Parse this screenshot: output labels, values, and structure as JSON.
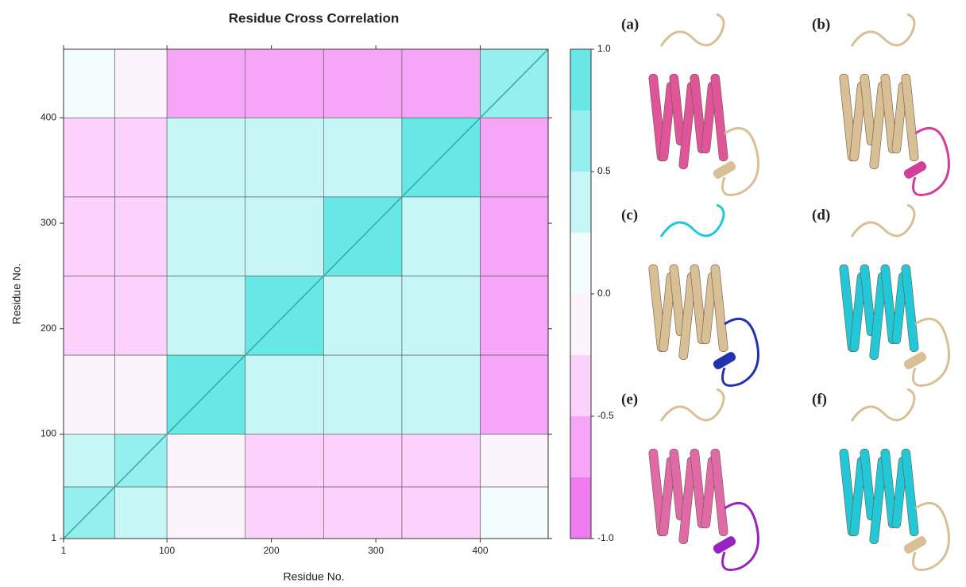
{
  "chart_data": {
    "type": "heatmap",
    "title": "Residue Cross Correlation",
    "x_label": "Residue No.",
    "y_label": "Residue No.",
    "x_bins": [
      1,
      50,
      100,
      175,
      250,
      325,
      400,
      465
    ],
    "y_bins": [
      1,
      50,
      100,
      175,
      250,
      325,
      400,
      465
    ],
    "values": [
      [
        0.7,
        0.3,
        -0.2,
        -0.3,
        -0.3,
        -0.3,
        0.1
      ],
      [
        0.3,
        0.7,
        -0.1,
        -0.4,
        -0.4,
        -0.4,
        0.0
      ],
      [
        -0.2,
        -0.1,
        0.8,
        0.5,
        0.3,
        0.3,
        -0.5
      ],
      [
        -0.3,
        -0.4,
        0.5,
        0.8,
        0.5,
        0.3,
        -0.5
      ],
      [
        -0.3,
        -0.4,
        0.3,
        0.5,
        0.8,
        0.5,
        -0.5
      ],
      [
        -0.3,
        -0.4,
        0.3,
        0.3,
        0.5,
        0.8,
        -0.5
      ],
      [
        0.1,
        0.0,
        -0.5,
        -0.5,
        -0.5,
        -0.5,
        0.7
      ]
    ],
    "xlim": [
      1,
      465
    ],
    "ylim": [
      1,
      465
    ],
    "xticks": [
      1,
      100,
      200,
      300,
      400
    ],
    "yticks": [
      1,
      100,
      200,
      300,
      400
    ],
    "color_levels": [
      -1,
      -0.75,
      -0.5,
      -0.25,
      0,
      0.25,
      0.5,
      0.75,
      1
    ],
    "colors": [
      "#f07af0",
      "#f7a6f7",
      "#fcd2fc",
      "#fdf3fd",
      "#f4fdfd",
      "#c6f6f6",
      "#95efef",
      "#68e7e7"
    ],
    "colorbar_ticks": [
      {
        "value": -1,
        "label": "-1.0"
      },
      -0.5,
      {
        "value": 0,
        "label": "0.0"
      },
      0.5,
      {
        "value": 1,
        "label": "1.0"
      }
    ]
  },
  "panels": [
    {
      "label": "(a)"
    },
    {
      "label": "(b)"
    },
    {
      "label": "(c)"
    },
    {
      "label": "(d)"
    },
    {
      "label": "(e)"
    },
    {
      "label": "(f)"
    }
  ]
}
